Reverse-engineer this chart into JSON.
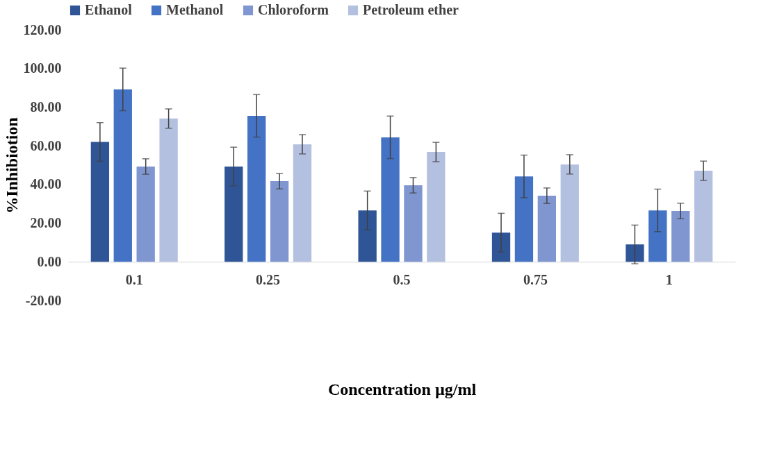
{
  "chart_data": {
    "type": "bar",
    "xlabel": "Concentration µg/ml",
    "ylabel": "%Inhibiotion",
    "categories": [
      "0.1",
      "0.25",
      "0.5",
      "0.75",
      "1"
    ],
    "series": [
      {
        "name": "Ethanol",
        "color": "#2f5597",
        "values": [
          62,
          49.3,
          26.6,
          15.1,
          9
        ],
        "errors": [
          10,
          10,
          10,
          10,
          10
        ]
      },
      {
        "name": "Methanol",
        "color": "#4472c4",
        "values": [
          89.2,
          75.5,
          64.4,
          44.2,
          26.6
        ],
        "errors": [
          11,
          11,
          11,
          11,
          11
        ]
      },
      {
        "name": "Chloroform",
        "color": "#7f96d1",
        "values": [
          49.3,
          41.7,
          39.6,
          34.2,
          26.3
        ],
        "errors": [
          4,
          4,
          4,
          4,
          4
        ]
      },
      {
        "name": "Petroleum ether",
        "color": "#b4c0e0",
        "values": [
          74.1,
          60.8,
          56.8,
          50.4,
          47.1
        ],
        "errors": [
          5,
          5,
          5,
          5,
          5
        ]
      }
    ],
    "ylim": [
      -20,
      120
    ],
    "yticks": [
      {
        "value": -20,
        "label": "-20.00"
      },
      {
        "value": 0,
        "label": "0.00"
      },
      {
        "value": 20,
        "label": "20.00"
      },
      {
        "value": 40,
        "label": "40.00"
      },
      {
        "value": 60,
        "label": "60.00"
      },
      {
        "value": 80,
        "label": "80.00"
      },
      {
        "value": 100,
        "label": "100.00"
      },
      {
        "value": 120,
        "label": "120.00"
      }
    ],
    "grid": false,
    "legend": "top"
  }
}
